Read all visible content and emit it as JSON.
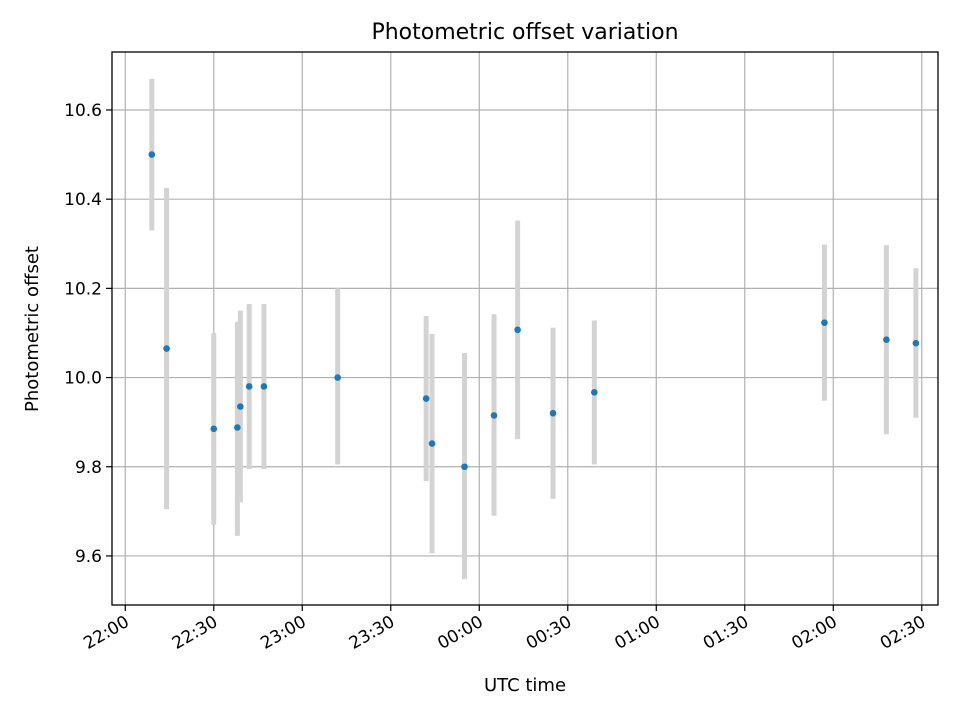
{
  "chart_data": {
    "type": "scatter",
    "title": "Photometric offset variation",
    "xlabel": "UTC time",
    "ylabel": "Photometric offset",
    "x_tick_labels": [
      "22:00",
      "22:30",
      "23:00",
      "23:30",
      "00:00",
      "00:30",
      "01:00",
      "01:30",
      "02:00",
      "02:30"
    ],
    "x_tick_minutes": [
      0,
      30,
      60,
      90,
      120,
      150,
      180,
      210,
      240,
      270
    ],
    "x_minutes_range": [
      -4.5,
      275.5
    ],
    "y_ticks": [
      9.6,
      9.8,
      10.0,
      10.2,
      10.4,
      10.6
    ],
    "y_tick_labels": [
      "9.6",
      "9.8",
      "10.0",
      "10.2",
      "10.4",
      "10.6"
    ],
    "ylim": [
      9.49,
      10.73
    ],
    "grid": true,
    "colors": {
      "point": "#1f77b4",
      "error_bar": "#d3d3d3",
      "grid": "#b0b0b0"
    },
    "points": [
      {
        "time": "22:09",
        "value": 10.5,
        "err_low": 10.33,
        "err_high": 10.67
      },
      {
        "time": "22:14",
        "value": 10.065,
        "err_low": 9.705,
        "err_high": 10.425
      },
      {
        "time": "22:30",
        "value": 9.885,
        "err_low": 9.67,
        "err_high": 10.1
      },
      {
        "time": "22:38",
        "value": 9.888,
        "err_low": 9.645,
        "err_high": 10.125
      },
      {
        "time": "22:39",
        "value": 9.935,
        "err_low": 9.72,
        "err_high": 10.15
      },
      {
        "time": "22:42",
        "value": 9.98,
        "err_low": 9.795,
        "err_high": 10.165
      },
      {
        "time": "22:47",
        "value": 9.98,
        "err_low": 9.795,
        "err_high": 10.165
      },
      {
        "time": "23:12",
        "value": 10.0,
        "err_low": 9.805,
        "err_high": 10.2
      },
      {
        "time": "23:42",
        "value": 9.953,
        "err_low": 9.768,
        "err_high": 10.138
      },
      {
        "time": "23:44",
        "value": 9.852,
        "err_low": 9.606,
        "err_high": 10.098
      },
      {
        "time": "23:55",
        "value": 9.8,
        "err_low": 9.548,
        "err_high": 10.055
      },
      {
        "time": "00:05",
        "value": 9.915,
        "err_low": 9.69,
        "err_high": 10.142
      },
      {
        "time": "00:13",
        "value": 10.107,
        "err_low": 9.862,
        "err_high": 10.352
      },
      {
        "time": "00:25",
        "value": 9.92,
        "err_low": 9.728,
        "err_high": 10.112
      },
      {
        "time": "00:39",
        "value": 9.967,
        "err_low": 9.805,
        "err_high": 10.128
      },
      {
        "time": "01:57",
        "value": 10.123,
        "err_low": 9.948,
        "err_high": 10.298
      },
      {
        "time": "02:18",
        "value": 10.085,
        "err_low": 9.873,
        "err_high": 10.297
      },
      {
        "time": "02:28",
        "value": 10.077,
        "err_low": 9.91,
        "err_high": 10.245
      }
    ]
  }
}
